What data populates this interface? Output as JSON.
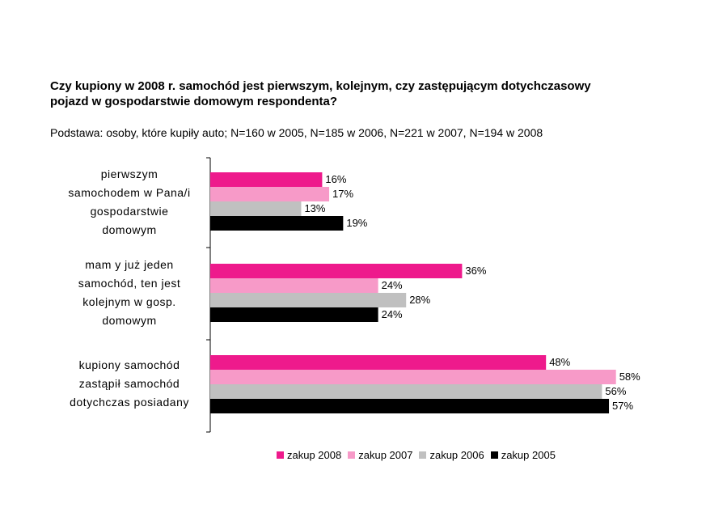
{
  "title_line1": "Czy kupiony w 2008 r. samochód jest pierwszym, kolejnym, czy zastępującym dotychczasowy",
  "title_line2": "pojazd w gospodarstwie domowym respondenta?",
  "subtitle": "Podstawa: osoby, które kupiły auto; N=160 w 2005, N=185 w 2006, N=221 w 2007, N=194 w 2008",
  "chart_data": {
    "type": "bar",
    "orientation": "horizontal",
    "title": "Czy kupiony w 2008 r. samochód jest pierwszym, kolejnym, czy zastępującym dotychczasowy pojazd w gospodarstwie domowym respondenta?",
    "categories": [
      [
        "pierwszym",
        "samochodem w Pana/i",
        "gospodarstwie",
        "domowym"
      ],
      [
        "mam y już jeden",
        "samochód, ten jest",
        "kolejnym w gosp.",
        "domowym"
      ],
      [
        "kupiony samochód",
        "zastąpił samochód",
        "dotychczas posiadany"
      ]
    ],
    "series": [
      {
        "name": "zakup 2008",
        "color": "#ee1a8c",
        "values": [
          16,
          36,
          48
        ]
      },
      {
        "name": "zakup 2007",
        "color": "#f79ac8",
        "values": [
          17,
          24,
          58
        ]
      },
      {
        "name": "zakup 2006",
        "color": "#c0c0c0",
        "values": [
          13,
          28,
          56
        ]
      },
      {
        "name": "zakup 2005",
        "color": "#000000",
        "values": [
          19,
          24,
          57
        ]
      }
    ],
    "value_suffix": "%",
    "xlim": [
      0,
      60
    ],
    "legend_position": "bottom"
  }
}
